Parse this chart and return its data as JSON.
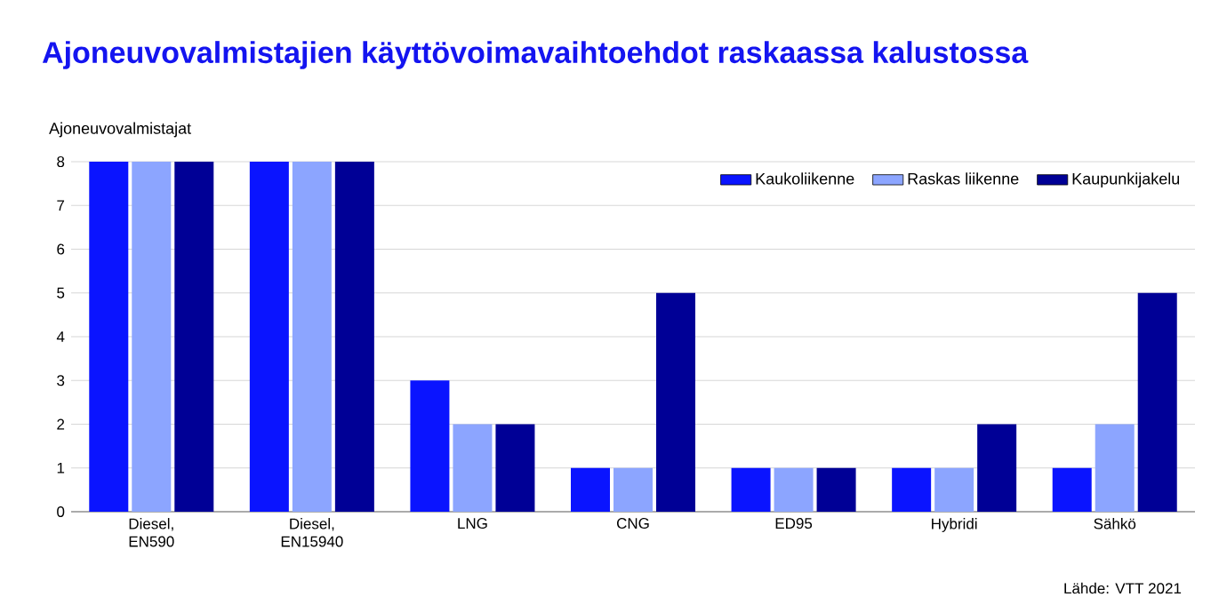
{
  "chart_data": {
    "type": "bar",
    "title": "Ajoneuvovalmistajien käyttövoimavaihtoehdot raskaassa kalustossa",
    "ylabel": "Ajoneuvovalmistajat",
    "categories": [
      "Diesel, EN590",
      "Diesel, EN15940",
      "LNG",
      "CNG",
      "ED95",
      "Hybridi",
      "Sähkö"
    ],
    "series": [
      {
        "name": "Kaukoliikenne",
        "color": "#0a14ff",
        "values": [
          8,
          8,
          3,
          1,
          1,
          1,
          1
        ]
      },
      {
        "name": "Raskas liikenne",
        "color": "#8ca5ff",
        "values": [
          8,
          8,
          2,
          1,
          1,
          1,
          2
        ]
      },
      {
        "name": "Kaupunkijakelu",
        "color": "#000096",
        "values": [
          8,
          8,
          2,
          5,
          1,
          2,
          5
        ]
      }
    ],
    "ylim": [
      0,
      8
    ],
    "yticks": [
      0,
      1,
      2,
      3,
      4,
      5,
      6,
      7,
      8
    ],
    "grid": "y",
    "legend": "top right",
    "annotations": [
      "Lähde: VTT 2021"
    ]
  }
}
